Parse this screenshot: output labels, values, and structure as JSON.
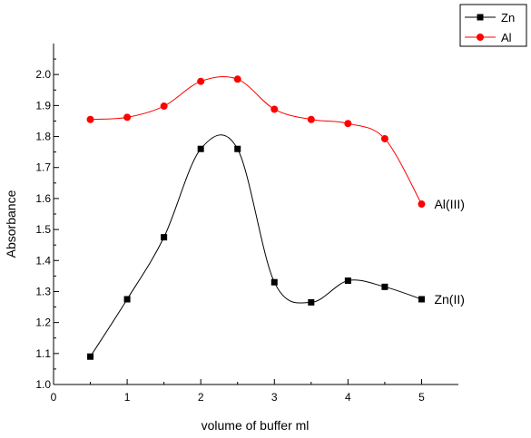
{
  "chart_data": {
    "type": "line",
    "title": "",
    "xlabel": "volume of buffer ml",
    "ylabel": "Absorbance",
    "xlim": [
      0,
      5.5
    ],
    "ylim": [
      1.0,
      2.1
    ],
    "x_ticks": [
      0,
      1,
      2,
      3,
      4,
      5
    ],
    "x_tick_labels": [
      "0",
      "1",
      "2",
      "3",
      "4",
      "5"
    ],
    "y_ticks": [
      1.0,
      1.1,
      1.2,
      1.3,
      1.4,
      1.5,
      1.6,
      1.7,
      1.8,
      1.9,
      2.0
    ],
    "y_tick_labels": [
      "1.0",
      "1.1",
      "1.2",
      "1.3",
      "1.4",
      "1.5",
      "1.6",
      "1.7",
      "1.8",
      "1.9",
      "2.0"
    ],
    "grid": false,
    "legend_position": "top-right",
    "series": [
      {
        "name": "Zn",
        "annotation": "Zn(II)",
        "color": "#000000",
        "marker": "square",
        "x": [
          0.5,
          1.0,
          1.5,
          2.0,
          2.5,
          3.0,
          3.5,
          4.0,
          4.5,
          5.0
        ],
        "y": [
          1.09,
          1.275,
          1.475,
          1.76,
          1.76,
          1.33,
          1.265,
          1.335,
          1.315,
          1.275
        ]
      },
      {
        "name": "Al",
        "annotation": "Al(III)",
        "color": "#ff0000",
        "marker": "circle",
        "x": [
          0.5,
          1.0,
          1.5,
          2.0,
          2.5,
          3.0,
          3.5,
          4.0,
          4.5,
          5.0
        ],
        "y": [
          1.855,
          1.862,
          1.898,
          1.978,
          1.985,
          1.888,
          1.855,
          1.842,
          1.793,
          1.582
        ]
      }
    ]
  }
}
